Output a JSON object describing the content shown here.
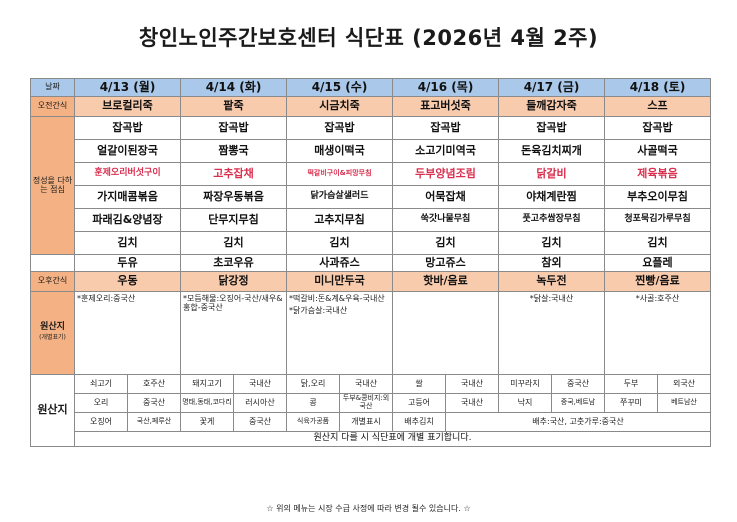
{
  "title": "창인노인주간보호센터 식단표 (2026년 4월 2주)",
  "labels": {
    "date": "날짜",
    "morning_snack": "오전간식",
    "lunch": "정성을 다하는 점심",
    "afternoon_snack": "오후간식",
    "origin": "원산지",
    "origin_sub": "(개별표기)",
    "origin_table": "원산지"
  },
  "days": [
    "4/13 (월)",
    "4/14 (화)",
    "4/15 (수)",
    "4/16 (목)",
    "4/17 (금)",
    "4/18 (토)"
  ],
  "morning_snacks": [
    "브로컬리죽",
    "팥죽",
    "시금치죽",
    "표고버섯죽",
    "들깨감자죽",
    "스프"
  ],
  "lunch": [
    [
      "잡곡밥",
      "잡곡밥",
      "잡곡밥",
      "잡곡밥",
      "잡곡밥",
      "잡곡밥"
    ],
    [
      "얼갈이된장국",
      "짬뽕국",
      "매생이떡국",
      "소고기미역국",
      "돈육김치찌개",
      "사골떡국"
    ],
    [
      "훈제오리버섯구이",
      "고추잡채",
      "떡갈비구이&피망무침",
      "두부양념조림",
      "닭갈비",
      "제육볶음"
    ],
    [
      "가지매콤볶음",
      "짜장우동볶음",
      "닭가슴살샐러드",
      "어묵잡채",
      "야채계란찜",
      "부추오이무침"
    ],
    [
      "파래김&양념장",
      "단무지무침",
      "고추지무침",
      "쑥갓나물무침",
      "풋고추쌈장무침",
      "청포묵김가루무침"
    ],
    [
      "김치",
      "김치",
      "김치",
      "김치",
      "김치",
      "김치"
    ]
  ],
  "lunch_red_row": 2,
  "milk": [
    "두유",
    "초코우유",
    "사과쥬스",
    "망고쥬스",
    "참외",
    "요플레"
  ],
  "afternoon_snacks": [
    "우동",
    "닭강정",
    "미니만두국",
    "핫바/음료",
    "녹두전",
    "찐빵/음료"
  ],
  "origin_notes": [
    [
      "*훈제오리:중국산"
    ],
    [
      "*모듬해물:오징어-국산/새우&홍합-중국산"
    ],
    [
      "*떡갈비:돈&계&우육-국내산",
      "*닭가슴살:국내산"
    ],
    [
      ""
    ],
    [
      "*닭살:국내산"
    ],
    [
      "*사골:호주산"
    ]
  ],
  "origin_table": [
    [
      "쇠고기",
      "호주산",
      "돼지고기",
      "국내산",
      "닭,오리",
      "국내산",
      "쌀",
      "국내산",
      "미꾸라지",
      "중국산",
      "두부",
      "외국산"
    ],
    [
      "오리",
      "중국산",
      "명태,동태,코다리",
      "러시아산",
      "콩",
      "두부&콩비지:외국산",
      "고등어",
      "국내산",
      "낙지",
      "중국,베트남",
      "쭈꾸미",
      "베트남산"
    ],
    [
      "오징어",
      "국산,페루산",
      "꽃게",
      "중국산",
      "식육가공품",
      "개별표시",
      "배추김치",
      "배추:국산, 고춧가루:중국산"
    ]
  ],
  "origin_footer": "원산지 다를 시 식단표에 개별 표기합니다.",
  "footnote": "☆ 위의 메뉴는 시장 수급 사정에 따라 변경 될수 있습니다. ☆"
}
